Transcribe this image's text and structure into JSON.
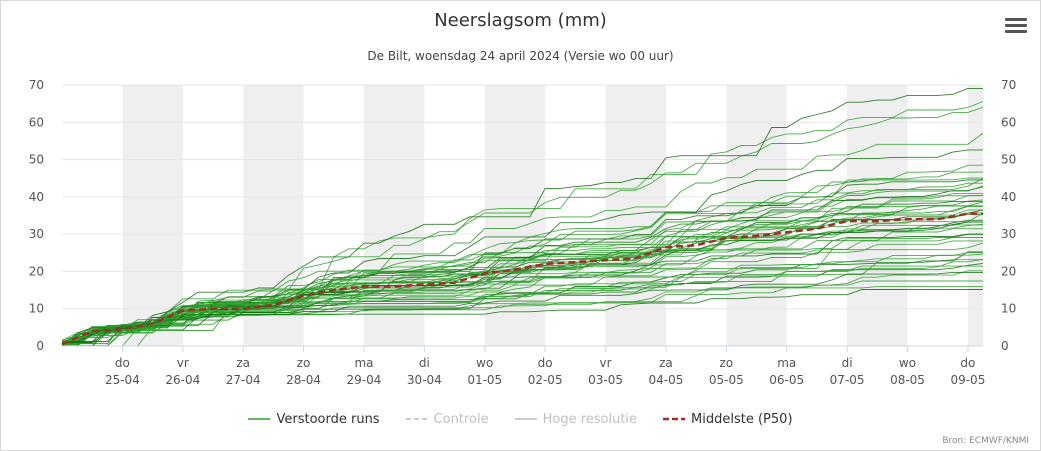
{
  "header": {
    "title": "Neerslagsom (mm)",
    "subtitle": "De Bilt, woensdag 24 april 2024 (Versie wo 00 uur)"
  },
  "menu_icon": "hamburger-menu-icon",
  "credit": "Bron: ECMWF/KNMI",
  "colors": {
    "ensemble": "#2ca02c",
    "ensemble_dark": "#0d6e0d",
    "median": "#a52a2a",
    "control": "#cccccc",
    "high_res": "#cccccc",
    "band": "#efefef",
    "grid": "#e6e6e6"
  },
  "legend": [
    {
      "label": "Verstoorde runs",
      "color": "#2ca02c",
      "style": "solid",
      "active": true
    },
    {
      "label": "Controle",
      "color": "#cccccc",
      "style": "dashed",
      "active": false
    },
    {
      "label": "Hoge resolutie",
      "color": "#cccccc",
      "style": "solid",
      "active": false
    },
    {
      "label": "Middelste (P50)",
      "color": "#a52a2a",
      "style": "dashed",
      "active": true
    }
  ],
  "chart_data": {
    "type": "line",
    "title": "Neerslagsom (mm)",
    "subtitle": "De Bilt, woensdag 24 april 2024 (Versie wo 00 uur)",
    "xlabel": "",
    "ylabel": "",
    "y_range": [
      0,
      70
    ],
    "y_ticks": [
      0,
      10,
      20,
      30,
      40,
      50,
      60,
      70
    ],
    "y_tick_labels": [
      "0",
      "10",
      "20",
      "30",
      "40",
      "50",
      "60",
      "70"
    ],
    "dual_y_axis": true,
    "x_range": [
      "2024-04-24 00:00",
      "2024-05-09 06:00"
    ],
    "x_ticks": [
      {
        "day": "do",
        "date": "25-04"
      },
      {
        "day": "vr",
        "date": "26-04"
      },
      {
        "day": "za",
        "date": "27-04"
      },
      {
        "day": "zo",
        "date": "28-04"
      },
      {
        "day": "ma",
        "date": "29-04"
      },
      {
        "day": "di",
        "date": "30-04"
      },
      {
        "day": "wo",
        "date": "01-05"
      },
      {
        "day": "do",
        "date": "02-05"
      },
      {
        "day": "vr",
        "date": "03-05"
      },
      {
        "day": "za",
        "date": "04-05"
      },
      {
        "day": "zo",
        "date": "05-05"
      },
      {
        "day": "ma",
        "date": "06-05"
      },
      {
        "day": "di",
        "date": "07-05"
      },
      {
        "day": "wo",
        "date": "08-05"
      },
      {
        "day": "do",
        "date": "09-05"
      }
    ],
    "ensemble_members": 50,
    "ensemble_final_values": [
      15.5,
      17,
      18,
      19,
      21.5,
      22,
      22.5,
      23,
      24,
      25,
      28,
      29,
      30,
      31,
      32,
      33,
      33.5,
      34,
      35,
      35.5,
      36,
      37,
      38,
      38.5,
      39,
      40,
      40.5,
      41,
      42,
      43,
      43.5,
      44,
      45,
      46,
      47,
      48,
      52,
      56,
      63,
      65,
      69,
      38,
      36.5,
      34.5,
      33,
      29.5,
      27,
      24.5,
      20,
      36
    ],
    "series": [
      {
        "name": "Middelste (P50)",
        "x": [
          "2024-04-24 00:00",
          "2024-04-24 12:00",
          "2024-04-25 00:00",
          "2024-04-25 12:00",
          "2024-04-26 00:00",
          "2024-04-26 12:00",
          "2024-04-27 00:00",
          "2024-04-27 12:00",
          "2024-04-28 00:00",
          "2024-04-28 12:00",
          "2024-04-29 00:00",
          "2024-04-29 12:00",
          "2024-04-30 00:00",
          "2024-04-30 12:00",
          "2024-05-01 00:00",
          "2024-05-01 12:00",
          "2024-05-02 00:00",
          "2024-05-02 12:00",
          "2024-05-03 00:00",
          "2024-05-03 12:00",
          "2024-05-04 00:00",
          "2024-05-04 12:00",
          "2024-05-05 00:00",
          "2024-05-05 12:00",
          "2024-05-06 00:00",
          "2024-05-06 12:00",
          "2024-05-07 00:00",
          "2024-05-07 12:00",
          "2024-05-08 00:00",
          "2024-05-08 12:00",
          "2024-05-09 00:00",
          "2024-05-09 06:00"
        ],
        "values": [
          0.5,
          4,
          4.5,
          6,
          9.5,
          10,
          10,
          11,
          13.5,
          15,
          16,
          16,
          16.5,
          17,
          19.5,
          20.5,
          22,
          22.5,
          23,
          23.5,
          26.5,
          27,
          29,
          29.5,
          30.5,
          31.5,
          33.5,
          33.5,
          34,
          34,
          35.5,
          35.5
        ]
      }
    ]
  }
}
